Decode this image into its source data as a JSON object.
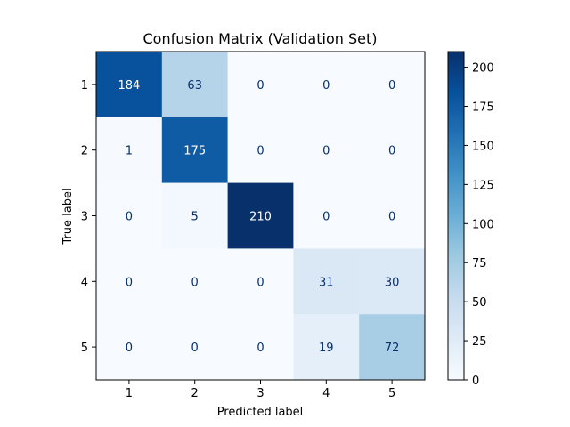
{
  "chart_data": {
    "type": "heatmap",
    "title": "Confusion Matrix (Validation Set)",
    "xlabel": "Predicted label",
    "ylabel": "True label",
    "x_categories": [
      "1",
      "2",
      "3",
      "4",
      "5"
    ],
    "y_categories": [
      "1",
      "2",
      "3",
      "4",
      "5"
    ],
    "values": [
      [
        184,
        63,
        0,
        0,
        0
      ],
      [
        1,
        175,
        0,
        0,
        0
      ],
      [
        0,
        5,
        210,
        0,
        0
      ],
      [
        0,
        0,
        0,
        31,
        30
      ],
      [
        0,
        0,
        0,
        19,
        72
      ]
    ],
    "colorbar": {
      "min": 0,
      "max": 210,
      "ticks": [
        0,
        25,
        50,
        75,
        100,
        125,
        150,
        175,
        200
      ],
      "tick_labels": [
        "0",
        "25",
        "50",
        "75",
        "100",
        "125",
        "150",
        "175",
        "200"
      ]
    },
    "colormap": "Blues",
    "colormap_low": "#f7fbff",
    "colormap_high": "#08306b",
    "text_color_dark": "#08306b",
    "text_color_light": "#ffffff"
  }
}
